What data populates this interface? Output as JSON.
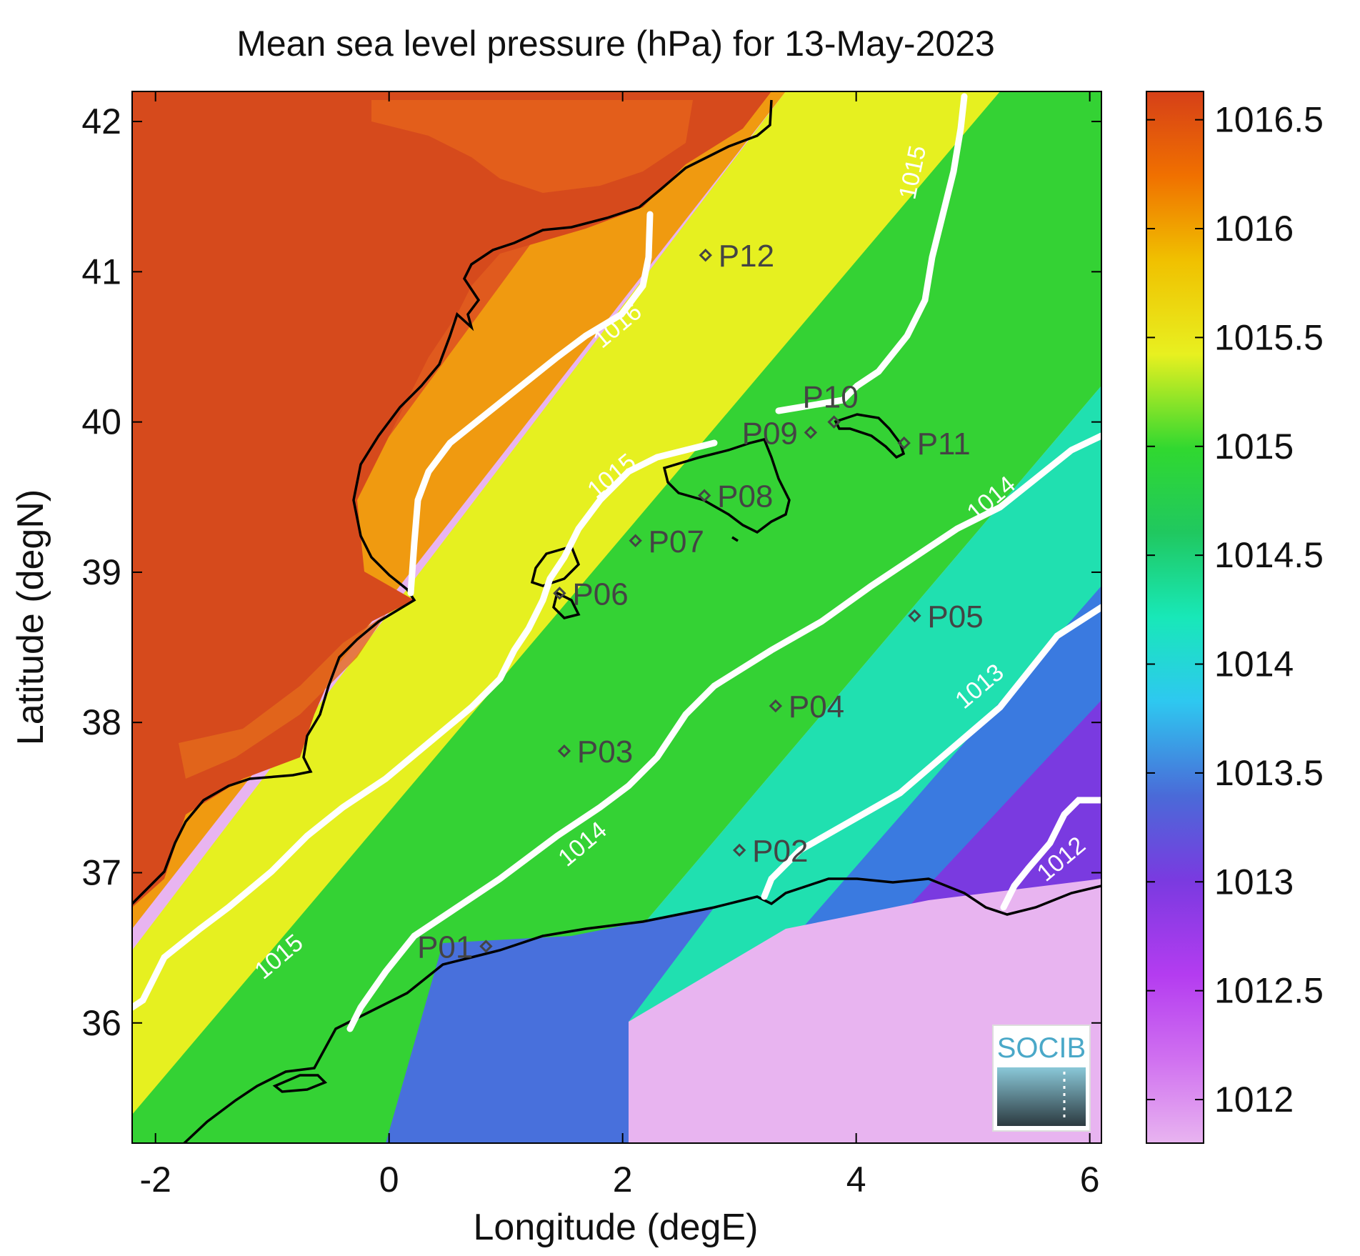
{
  "title": "Mean sea level pressure (hPa) for 13-May-2023",
  "x_axis": {
    "label": "Longitude (degE)",
    "range": [
      -2.2,
      6.1
    ],
    "ticks": [
      {
        "value": -2,
        "label": "-2"
      },
      {
        "value": 0,
        "label": "0"
      },
      {
        "value": 2,
        "label": "2"
      },
      {
        "value": 4,
        "label": "4"
      },
      {
        "value": 6,
        "label": "6"
      }
    ]
  },
  "y_axis": {
    "label": "Latitude (degN)",
    "range": [
      35.2,
      42.2
    ],
    "ticks": [
      {
        "value": 36,
        "label": "36"
      },
      {
        "value": 37,
        "label": "37"
      },
      {
        "value": 38,
        "label": "38"
      },
      {
        "value": 39,
        "label": "39"
      },
      {
        "value": 40,
        "label": "40"
      },
      {
        "value": 41,
        "label": "41"
      },
      {
        "value": 42,
        "label": "42"
      }
    ]
  },
  "colorbar": {
    "range": [
      1011.8,
      1016.63
    ],
    "ticks": [
      {
        "value": 1012,
        "label": "1012"
      },
      {
        "value": 1012.5,
        "label": "1012.5"
      },
      {
        "value": 1013,
        "label": "1013"
      },
      {
        "value": 1013.5,
        "label": "1013.5"
      },
      {
        "value": 1014,
        "label": "1014"
      },
      {
        "value": 1014.5,
        "label": "1014.5"
      },
      {
        "value": 1015,
        "label": "1015"
      },
      {
        "value": 1015.5,
        "label": "1015.5"
      },
      {
        "value": 1016,
        "label": "1016"
      },
      {
        "value": 1016.5,
        "label": "1016.5"
      }
    ],
    "colors": [
      "#e8b4f0",
      "#c23cf2",
      "#7a3ae0",
      "#4a6ad8",
      "#2ec8f0",
      "#18e8b8",
      "#20d850",
      "#30cc30",
      "#e8f020",
      "#f0c000",
      "#f07000",
      "#d64018"
    ]
  },
  "contour_labels": [
    {
      "text": "1016",
      "lon": 2.0,
      "lat": 40.6
    },
    {
      "text": "1015",
      "lon": 4.55,
      "lat": 41.65
    },
    {
      "text": "1015",
      "lon": 1.95,
      "lat": 39.6
    },
    {
      "text": "1015",
      "lon": -0.9,
      "lat": 36.4
    },
    {
      "text": "1014",
      "lon": 5.2,
      "lat": 39.45
    },
    {
      "text": "1014",
      "lon": 1.7,
      "lat": 37.15
    },
    {
      "text": "1013",
      "lon": 5.1,
      "lat": 38.2
    },
    {
      "text": "1012",
      "lon": 5.8,
      "lat": 37.05
    }
  ],
  "points": [
    {
      "id": "P01",
      "lon": 0.83,
      "lat": 36.51,
      "label_side": "left"
    },
    {
      "id": "P02",
      "lon": 3.0,
      "lat": 37.15,
      "label_side": "right"
    },
    {
      "id": "P03",
      "lon": 1.5,
      "lat": 37.81,
      "label_side": "right"
    },
    {
      "id": "P04",
      "lon": 3.31,
      "lat": 38.11,
      "label_side": "right"
    },
    {
      "id": "P05",
      "lon": 4.5,
      "lat": 38.71,
      "label_side": "right"
    },
    {
      "id": "P06",
      "lon": 1.46,
      "lat": 38.86,
      "label_side": "right"
    },
    {
      "id": "P07",
      "lon": 2.11,
      "lat": 39.21,
      "label_side": "right"
    },
    {
      "id": "P08",
      "lon": 2.7,
      "lat": 39.51,
      "label_side": "right"
    },
    {
      "id": "P09",
      "lon": 3.61,
      "lat": 39.93,
      "label_side": "leftlabel"
    },
    {
      "id": "P10",
      "lon": 3.81,
      "lat": 40.0,
      "label_side": "above"
    },
    {
      "id": "P11",
      "lon": 4.41,
      "lat": 39.86,
      "label_side": "right"
    },
    {
      "id": "P12",
      "lon": 2.71,
      "lat": 41.11,
      "label_side": "right"
    }
  ],
  "logo": {
    "text": "SOCIB"
  }
}
